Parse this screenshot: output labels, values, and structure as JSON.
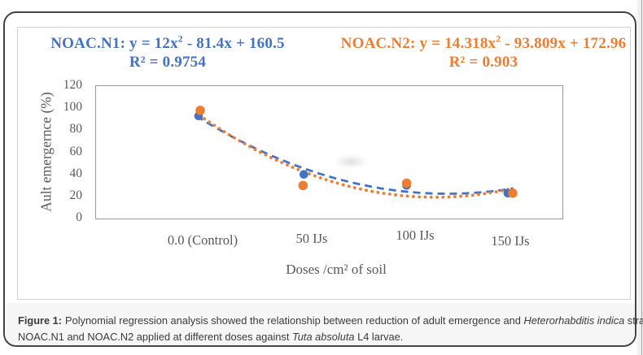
{
  "figure": {
    "equations": {
      "n1": {
        "pre": "NOAC.N1: y = 12x",
        "sup": "2",
        "post": " - 81.4x + 160.5",
        "r2": "R² = 0.9754",
        "color": "#4472C4"
      },
      "n2": {
        "pre": "NOAC.N2: y = 14.318x",
        "sup": "2",
        "post": " - 93.809x + 172.96",
        "r2": "R² = 0.903",
        "color": "#ED7D31"
      }
    },
    "caption": {
      "label": "Figure 1:",
      "line1_a": "Polynomial regression analysis showed the relationship between reduction of adult emergence and ",
      "line1_italic": "Heterorhabditis indica",
      "line1_b": " strains",
      "line2_a": "NOAC.N1 and NOAC.N2 applied at different doses against ",
      "line2_italic": "Tuta absoluta",
      "line2_b": " L4 larvae."
    }
  },
  "chart_data": {
    "type": "scatter",
    "title": "",
    "categories": [
      "0.0 (Control)",
      "50 IJs",
      "100 IJs",
      "150 IJs"
    ],
    "xlabel": "Doses /cm² of soil",
    "ylabel": "Ault emergernce (%)",
    "yticks": [
      120,
      100,
      80,
      60,
      40,
      20,
      0
    ],
    "ylim": [
      0,
      120
    ],
    "grid": false,
    "legend": "none (equations shown above plot)",
    "plot_border_color": "#7CB75B",
    "series": [
      {
        "name": "NOAC.N1",
        "color": "#4472C4",
        "marker": "circle",
        "values": [
          93,
          40,
          30,
          23
        ]
      },
      {
        "name": "NOAC.N2",
        "color": "#ED7D31",
        "marker": "circle",
        "values": [
          98,
          30,
          32,
          23
        ]
      }
    ],
    "trendlines": [
      {
        "name": "NOAC.N1",
        "color": "#4472C4",
        "dash": "dashed",
        "equation": "y = 12x² - 81.4x + 160.5",
        "r2": 0.9754,
        "coeffs": [
          12,
          -81.4,
          160.5
        ]
      },
      {
        "name": "NOAC.N2",
        "color": "#ED7D31",
        "dash": "dotted",
        "equation": "y = 14.318x² - 93.809x + 172.96",
        "r2": 0.903,
        "coeffs": [
          14.318,
          -93.809,
          172.96
        ]
      }
    ]
  }
}
